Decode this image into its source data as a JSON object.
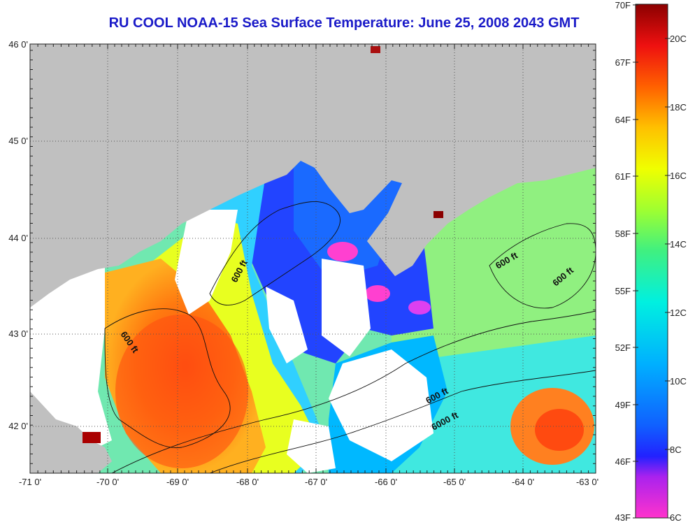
{
  "title": "RU COOL  NOAA-15  Sea Surface Temperature:  June 25, 2008 2043 GMT",
  "map": {
    "lon_labels": [
      "-71 0'",
      "-70 0'",
      "-69 0'",
      "-68 0'",
      "-67 0'",
      "-66 0'",
      "-65 0'",
      "-64 0'",
      "-63 0'"
    ],
    "lat_labels": [
      "46 0'",
      "45 0'",
      "44 0'",
      "43 0'",
      "42 0'"
    ],
    "lon_range": [
      -71,
      -63
    ],
    "lat_range": [
      41.5,
      46.1
    ],
    "contour_labels": [
      {
        "text": "600 ft"
      },
      {
        "text": "600 ft"
      },
      {
        "text": "600 ft"
      },
      {
        "text": "600 ft"
      },
      {
        "text": "600 ft"
      },
      {
        "text": "6000 ft"
      }
    ]
  },
  "colorbar": {
    "fahrenheit_labels": [
      "70F",
      "67F",
      "64F",
      "61F",
      "58F",
      "55F",
      "52F",
      "49F",
      "46F",
      "43F"
    ],
    "celsius_labels": [
      "20C",
      "18C",
      "16C",
      "14C",
      "12C",
      "10C",
      "8C",
      "6C"
    ],
    "range_celsius": [
      6,
      21
    ]
  },
  "colors": {
    "land": "#c0c0c0",
    "cloud": "#ffffff",
    "title": "#1a1ac8"
  }
}
